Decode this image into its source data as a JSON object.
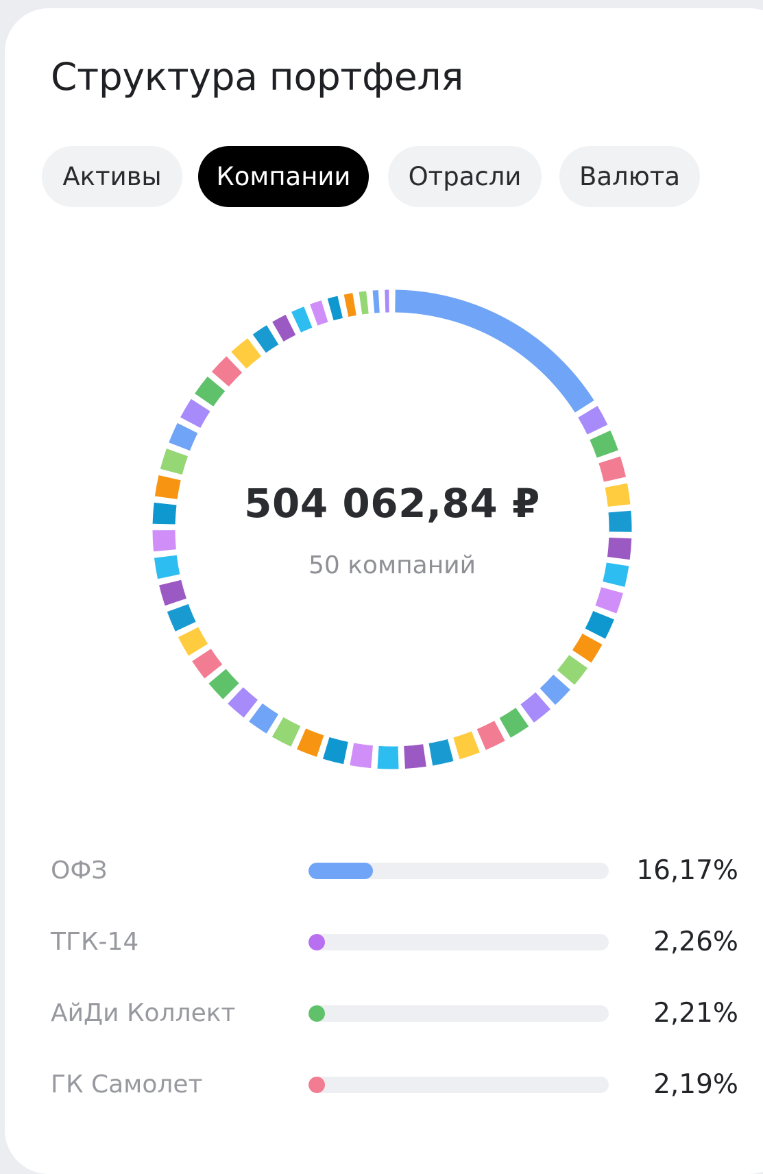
{
  "title": "Структура портфеля",
  "tabs": [
    {
      "label": "Активы",
      "active": false
    },
    {
      "label": "Компании",
      "active": true
    },
    {
      "label": "Отрасли",
      "active": false
    },
    {
      "label": "Валюта",
      "active": false
    }
  ],
  "summary": {
    "total": "504 062,84 ₽",
    "count": "50 компаний"
  },
  "chart_data": {
    "type": "pie",
    "style": "donut",
    "title": "",
    "segment_count": 50,
    "first_segment_percent": 16.17,
    "palette": [
      "#a78bfa",
      "#5fc26b",
      "#f27c92",
      "#ffcc3f",
      "#199bd2",
      "#9b59c4",
      "#2ebdf0",
      "#cf8ef8",
      "#0f97d0",
      "#f79512",
      "#95d675",
      "#6fa4f6"
    ],
    "slices": [
      {
        "label": "ОФЗ",
        "value": 16.17,
        "color": "#6fa4f6"
      },
      {
        "label": "ТГК-14",
        "value": 2.26,
        "color": "#b86ff0"
      },
      {
        "label": "АйДи Коллект",
        "value": 2.21,
        "color": "#5fc26b"
      },
      {
        "label": "ГК Самолет",
        "value": 2.19,
        "color": "#f27c92"
      }
    ]
  },
  "list": [
    {
      "name": "ОФЗ",
      "percent_text": "16,17%",
      "value": 16.17,
      "color": "#6fa4f6"
    },
    {
      "name": "ТГК-14",
      "percent_text": "2,26%",
      "value": 2.26,
      "color": "#b86ff0"
    },
    {
      "name": "АйДи Коллект",
      "percent_text": "2,21%",
      "value": 2.21,
      "color": "#5fc26b"
    },
    {
      "name": "ГК Самолет",
      "percent_text": "2,19%",
      "value": 2.19,
      "color": "#f27c92"
    }
  ],
  "bar_scale_max_percent": 75
}
